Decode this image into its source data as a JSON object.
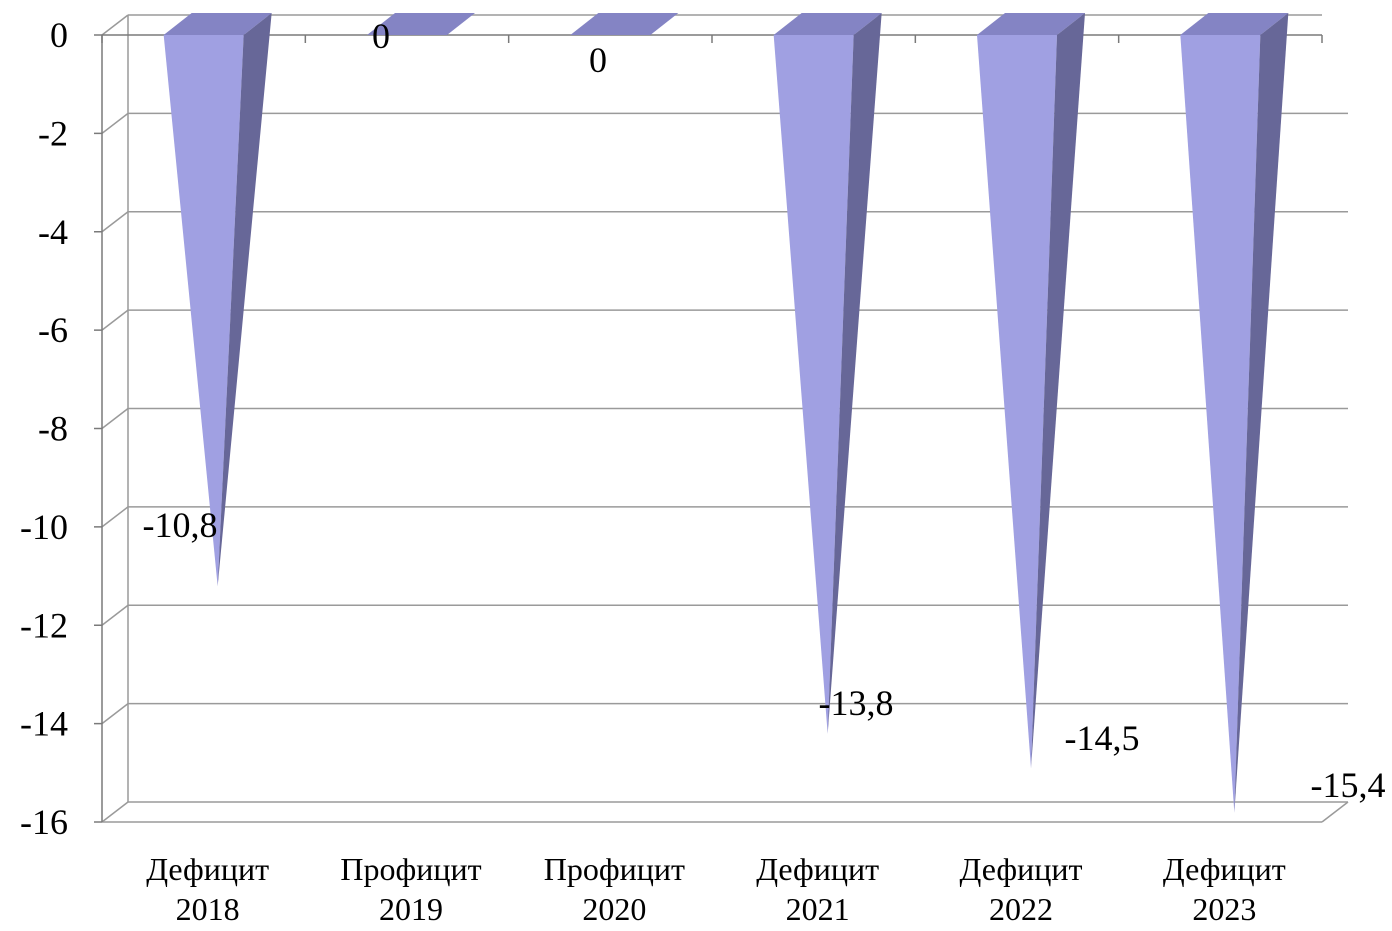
{
  "chart_data": {
    "type": "bar",
    "style": "3d-cone",
    "categories": [
      [
        "Дефицит",
        "2018"
      ],
      [
        "Профицит",
        "2019"
      ],
      [
        "Профицит",
        "2020"
      ],
      [
        "Дефицит",
        "2021"
      ],
      [
        "Дефицит",
        "2022"
      ],
      [
        "Дефицит",
        "2023"
      ]
    ],
    "values": [
      -10.8,
      0,
      0,
      -13.8,
      -14.5,
      -15.4
    ],
    "data_labels": [
      "-10,8",
      "0",
      "0",
      "-13,8",
      "-14,5",
      "-15,4"
    ],
    "y_ticks": [
      0,
      -2,
      -4,
      -6,
      -8,
      -10,
      -12,
      -14,
      -16
    ],
    "y_tick_labels": [
      "0",
      "-2",
      "-4",
      "-6",
      "-8",
      "-10",
      "-12",
      "-14",
      "-16"
    ],
    "ylim": [
      -16,
      0
    ],
    "grid": true,
    "legend": "none",
    "colors": {
      "cone_front": "#a0a0e2",
      "cone_side": "#676798",
      "cone_top": "#8484c4",
      "grid": "#9a9a9a",
      "axis": "#7a7a7a"
    }
  }
}
